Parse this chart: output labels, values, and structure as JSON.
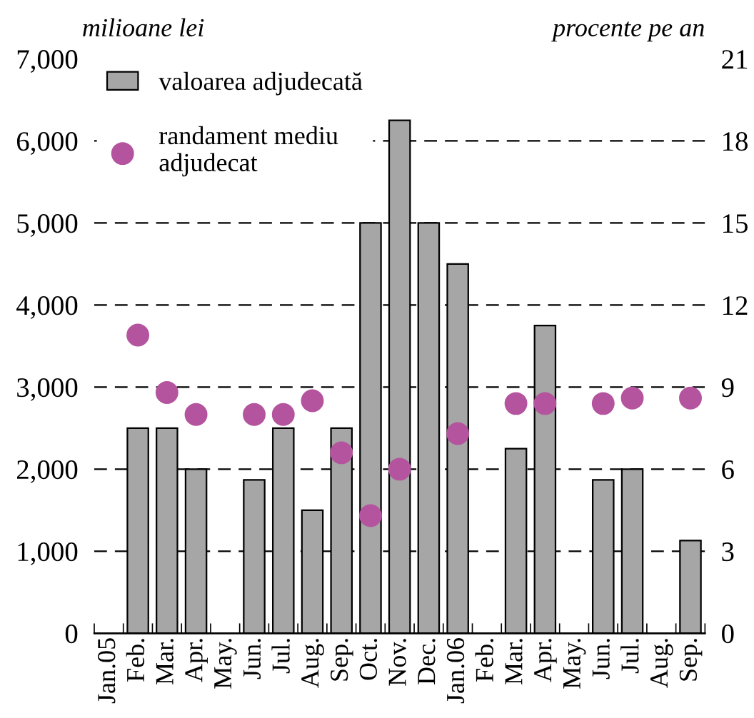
{
  "chart_data": {
    "type": "bar",
    "ylabel": "milioane lei",
    "y2label": "procente pe an",
    "categories": [
      "Jan.05",
      "Feb.",
      "Mar.",
      "Apr.",
      "May.",
      "Jun.",
      "Jul.",
      "Aug.",
      "Sep.",
      "Oct.",
      "Nov.",
      "Dec.",
      "Jan.06",
      "Feb.",
      "Mar.",
      "Apr.",
      "May.",
      "Jun.",
      "Jul.",
      "Aug.",
      "Sep."
    ],
    "series": [
      {
        "name": "valoarea adjudecată",
        "color": "#a6a6a6",
        "values": [
          null,
          2500,
          2500,
          2000,
          null,
          1870,
          2500,
          1500,
          2500,
          5000,
          6250,
          5000,
          4500,
          null,
          2250,
          3750,
          null,
          1870,
          2000,
          null,
          1130
        ]
      },
      {
        "name": "randament mediu adjudecat",
        "type": "scatter",
        "axis": "y2",
        "color": "#b5549e",
        "values": [
          null,
          10.9,
          8.8,
          8.0,
          null,
          8.0,
          8.0,
          8.5,
          6.6,
          4.3,
          6.0,
          null,
          7.3,
          null,
          8.4,
          8.4,
          null,
          8.4,
          8.6,
          null,
          8.6
        ]
      }
    ],
    "ylim": [
      0,
      7000
    ],
    "yticks": [
      0,
      {
        "value": 1000,
        "label": "1,000"
      },
      {
        "value": 2000,
        "label": "2,000"
      },
      {
        "value": 3000,
        "label": "3,000"
      },
      {
        "value": 4000,
        "label": "4,000"
      },
      {
        "value": 5000,
        "label": "5,000"
      },
      {
        "value": 6000,
        "label": "6,000"
      },
      {
        "value": 7000,
        "label": "7,000"
      }
    ],
    "y2lim": [
      0,
      21
    ],
    "y2ticks": [
      0,
      3,
      6,
      9,
      12,
      15,
      18,
      21
    ],
    "grid": "y",
    "legend": "top left",
    "marker": "circle"
  }
}
